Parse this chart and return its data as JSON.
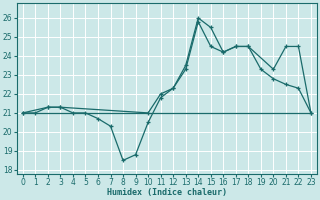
{
  "xlabel": "Humidex (Indice chaleur)",
  "xlim": [
    -0.5,
    23.5
  ],
  "ylim": [
    17.8,
    26.8
  ],
  "yticks": [
    18,
    19,
    20,
    21,
    22,
    23,
    24,
    25,
    26
  ],
  "xticks": [
    0,
    1,
    2,
    3,
    4,
    5,
    6,
    7,
    8,
    9,
    10,
    11,
    12,
    13,
    14,
    15,
    16,
    17,
    18,
    19,
    20,
    21,
    22,
    23
  ],
  "bg_color": "#cce8e8",
  "line_color": "#1a6b6b",
  "line1_x": [
    0,
    1,
    2,
    3,
    4,
    5,
    6,
    7,
    8,
    9,
    10,
    11,
    12,
    13,
    14,
    15,
    16,
    17,
    18,
    19,
    20,
    21,
    22,
    23
  ],
  "line1_y": [
    21.0,
    21.0,
    21.3,
    21.3,
    21.0,
    21.0,
    20.7,
    20.3,
    18.5,
    18.8,
    20.5,
    21.8,
    22.3,
    23.5,
    26.0,
    25.5,
    24.2,
    24.5,
    24.5,
    23.3,
    22.8,
    22.5,
    22.3,
    21.0
  ],
  "line2_x": [
    0,
    2,
    3,
    10,
    11,
    12,
    13,
    14,
    15,
    16,
    17,
    18,
    20,
    21,
    22,
    23
  ],
  "line2_y": [
    21.0,
    21.3,
    21.3,
    21.0,
    22.0,
    22.3,
    23.3,
    25.8,
    24.5,
    24.2,
    24.5,
    24.5,
    23.3,
    24.5,
    24.5,
    21.0
  ],
  "line3_x": [
    0,
    23
  ],
  "line3_y": [
    21.0,
    21.0
  ]
}
